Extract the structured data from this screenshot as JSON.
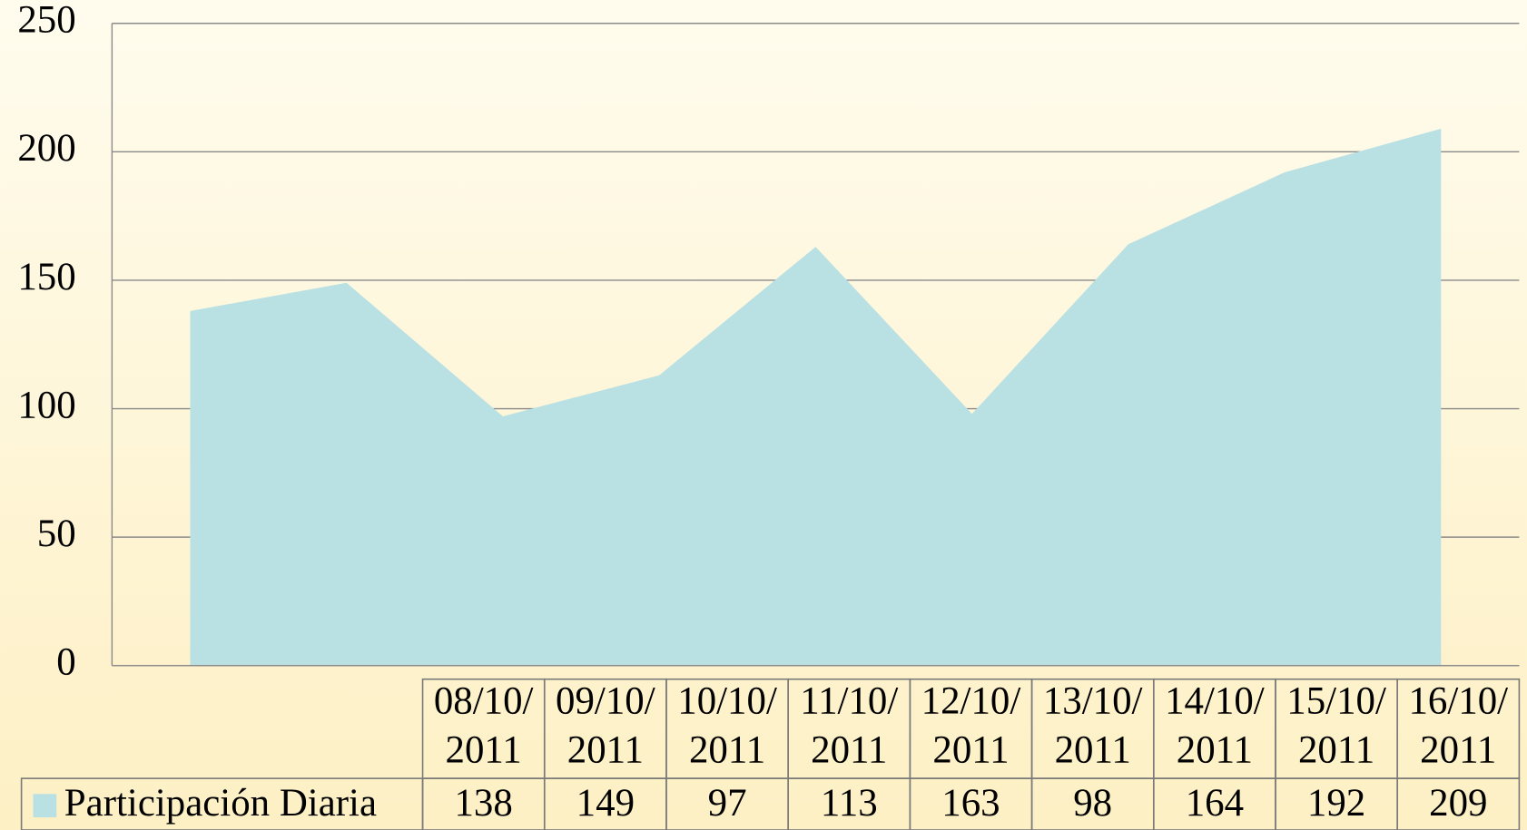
{
  "chart_data": {
    "type": "area",
    "categories": [
      "08/10/2011",
      "09/10/2011",
      "10/10/2011",
      "11/10/2011",
      "12/10/2011",
      "13/10/2011",
      "14/10/2011",
      "15/10/2011",
      "16/10/2011"
    ],
    "series": [
      {
        "name": "Participación Diaria",
        "color": "#b9e0e3",
        "values": [
          138,
          149,
          97,
          113,
          163,
          98,
          164,
          192,
          209
        ]
      }
    ],
    "ylim": [
      0,
      250
    ],
    "yticks": [
      0,
      50,
      100,
      150,
      200,
      250
    ],
    "grid": true,
    "legend": "bottom-left"
  }
}
